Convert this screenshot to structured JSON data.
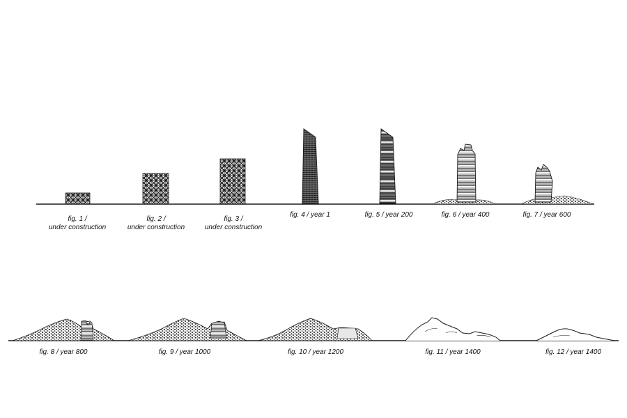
{
  "colors": {
    "ink": "#1a1a1a",
    "paper": "#ffffff"
  },
  "row1": {
    "figures": [
      {
        "id": "fig1",
        "caption_line1": "fig. 1 /",
        "caption_line2": "under construction",
        "icon": "scaffold-tower-icon"
      },
      {
        "id": "fig2",
        "caption_line1": "fig. 2 /",
        "caption_line2": "under construction",
        "icon": "scaffold-tower-icon"
      },
      {
        "id": "fig3",
        "caption_line1": "fig. 3 /",
        "caption_line2": "under construction",
        "icon": "scaffold-tower-icon"
      },
      {
        "id": "fig4",
        "caption_line1": "fig. 4 / year 1",
        "caption_line2": "",
        "icon": "tower-icon"
      },
      {
        "id": "fig5",
        "caption_line1": "fig. 5 / year 200",
        "caption_line2": "",
        "icon": "tower-icon"
      },
      {
        "id": "fig6",
        "caption_line1": "fig. 6 / year 400",
        "caption_line2": "",
        "icon": "ruined-tower-icon"
      },
      {
        "id": "fig7",
        "caption_line1": "fig. 7 / year 600",
        "caption_line2": "",
        "icon": "ruined-tower-icon"
      }
    ]
  },
  "row2": {
    "figures": [
      {
        "id": "fig8",
        "caption_line1": "fig. 8 / year 800",
        "icon": "rubble-mound-icon"
      },
      {
        "id": "fig9",
        "caption_line1": "fig. 9 / year 1000",
        "icon": "rubble-mound-icon"
      },
      {
        "id": "fig10",
        "caption_line1": "fig. 10 / year 1200",
        "icon": "rubble-mound-icon"
      },
      {
        "id": "fig11",
        "caption_line1": "fig. 11 / year 1400",
        "icon": "hill-outline-icon"
      },
      {
        "id": "fig12",
        "caption_line1": "fig. 12 / year 1400",
        "icon": "hill-outline-icon"
      }
    ]
  }
}
